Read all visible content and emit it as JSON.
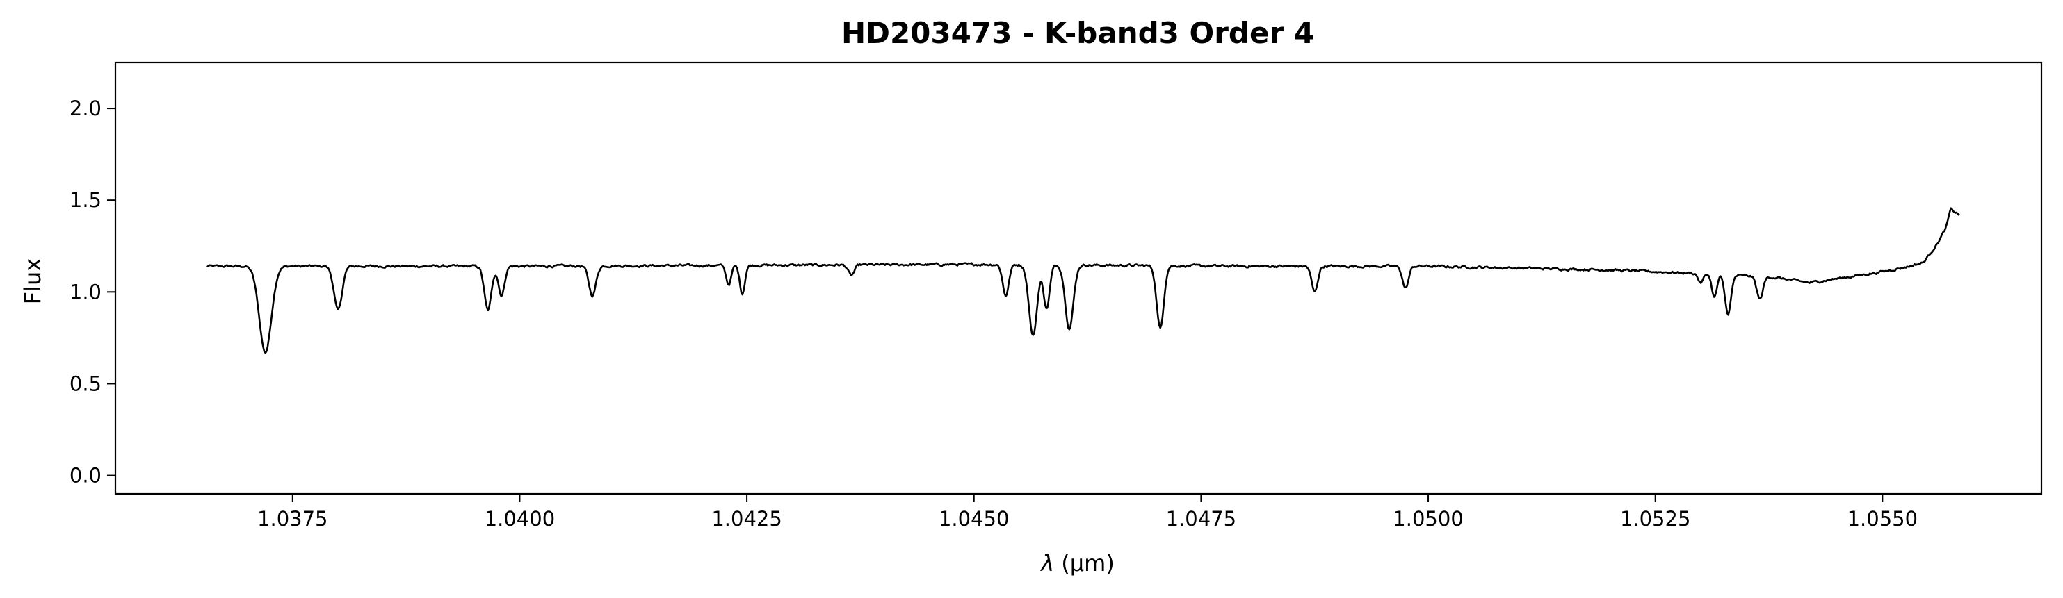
{
  "chart_data": {
    "type": "line",
    "title": "HD203473 - K-band3 Order 4",
    "xlabel_symbol": "λ",
    "xlabel_unit": "(μm)",
    "ylabel": "Flux",
    "xlim": [
      1.03555,
      1.05675
    ],
    "ylim": [
      -0.1,
      2.25
    ],
    "xticks": [
      1.0375,
      1.04,
      1.0425,
      1.045,
      1.0475,
      1.05,
      1.0525,
      1.055
    ],
    "xtick_labels": [
      "1.0375",
      "1.0400",
      "1.0425",
      "1.0450",
      "1.0475",
      "1.0500",
      "1.0525",
      "1.0550"
    ],
    "yticks": [
      0.0,
      0.5,
      1.0,
      1.5,
      2.0
    ],
    "ytick_labels": [
      "0.0",
      "0.5",
      "1.0",
      "1.5",
      "2.0"
    ],
    "grid": false,
    "line_color": "#000000",
    "series": [
      {
        "x_start": 1.03655,
        "x_end": 1.05585,
        "continuum": [
          [
            1.03655,
            1.14
          ],
          [
            1.04,
            1.14
          ],
          [
            1.045,
            1.15
          ],
          [
            1.048,
            1.14
          ],
          [
            1.05,
            1.14
          ],
          [
            1.052,
            1.12
          ],
          [
            1.053,
            1.1
          ],
          [
            1.0538,
            1.08
          ],
          [
            1.0542,
            1.05
          ],
          [
            1.0546,
            1.08
          ],
          [
            1.055,
            1.11
          ],
          [
            1.0553,
            1.14
          ],
          [
            1.05545,
            1.16
          ],
          [
            1.0556,
            1.26
          ],
          [
            1.0557,
            1.35
          ],
          [
            1.05575,
            1.45
          ],
          [
            1.05585,
            1.42
          ]
        ],
        "absorption_lines": [
          [
            1.0372,
            0.67,
            0.00012
          ],
          [
            1.038,
            0.9,
            8e-05
          ],
          [
            1.03965,
            0.9,
            7e-05
          ],
          [
            1.0398,
            0.98,
            6e-05
          ],
          [
            1.0408,
            0.98,
            7e-05
          ],
          [
            1.0423,
            1.04,
            5e-05
          ],
          [
            1.04245,
            0.99,
            5e-05
          ],
          [
            1.04365,
            1.09,
            6e-05
          ],
          [
            1.04535,
            0.98,
            6e-05
          ],
          [
            1.04565,
            0.76,
            8e-05
          ],
          [
            1.0458,
            0.91,
            6e-05
          ],
          [
            1.04605,
            0.8,
            8e-05
          ],
          [
            1.04705,
            0.8,
            7e-05
          ],
          [
            1.04875,
            1.0,
            6e-05
          ],
          [
            1.04975,
            1.02,
            6e-05
          ],
          [
            1.053,
            1.05,
            5e-05
          ],
          [
            1.05315,
            0.97,
            5e-05
          ],
          [
            1.0533,
            0.88,
            6e-05
          ],
          [
            1.05365,
            0.96,
            6e-05
          ]
        ],
        "noise_amplitude": 0.012,
        "num_points": 1600
      }
    ]
  }
}
